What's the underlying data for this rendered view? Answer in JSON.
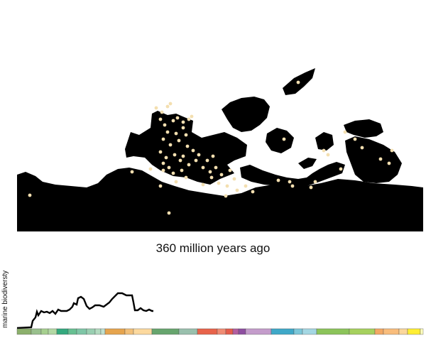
{
  "map": {
    "age_label": "360 million years ago",
    "land_color": "#000000",
    "fossil_color": "#f3dfb0",
    "fossil_sites": [
      [
        220,
        152
      ],
      [
        228,
        158
      ],
      [
        236,
        150
      ],
      [
        240,
        146
      ],
      [
        226,
        168
      ],
      [
        232,
        176
      ],
      [
        244,
        170
      ],
      [
        250,
        166
      ],
      [
        258,
        172
      ],
      [
        266,
        168
      ],
      [
        270,
        164
      ],
      [
        236,
        186
      ],
      [
        248,
        188
      ],
      [
        258,
        180
      ],
      [
        262,
        190
      ],
      [
        230,
        196
      ],
      [
        240,
        204
      ],
      [
        252,
        198
      ],
      [
        264,
        206
      ],
      [
        272,
        212
      ],
      [
        226,
        214
      ],
      [
        234,
        222
      ],
      [
        246,
        218
      ],
      [
        254,
        226
      ],
      [
        238,
        236
      ],
      [
        230,
        240
      ],
      [
        244,
        244
      ],
      [
        256,
        240
      ],
      [
        266,
        232
      ],
      [
        276,
        226
      ],
      [
        286,
        236
      ],
      [
        296,
        242
      ],
      [
        304,
        236
      ],
      [
        312,
        246
      ],
      [
        324,
        240
      ],
      [
        330,
        252
      ],
      [
        320,
        262
      ],
      [
        308,
        258
      ],
      [
        298,
        250
      ],
      [
        186,
        242
      ],
      [
        226,
        262
      ],
      [
        286,
        260
      ],
      [
        318,
        276
      ],
      [
        334,
        268
      ],
      [
        346,
        262
      ],
      [
        356,
        270
      ],
      [
        392,
        254
      ],
      [
        408,
        256
      ],
      [
        412,
        262
      ],
      [
        438,
        264
      ],
      [
        444,
        256
      ],
      [
        456,
        212
      ],
      [
        462,
        218
      ],
      [
        480,
        238
      ],
      [
        486,
        186
      ],
      [
        500,
        196
      ],
      [
        510,
        208
      ],
      [
        536,
        224
      ],
      [
        548,
        230
      ],
      [
        552,
        212
      ],
      [
        420,
        116
      ],
      [
        400,
        196
      ],
      [
        42,
        275
      ],
      [
        238,
        300
      ],
      [
        212,
        238
      ],
      [
        230,
        230
      ],
      [
        258,
        220
      ],
      [
        280,
        218
      ],
      [
        292,
        226
      ],
      [
        300,
        220
      ],
      [
        248,
        256
      ],
      [
        262,
        250
      ]
    ]
  },
  "biodiversity": {
    "ylabel": "marine biodiversty",
    "line_color": "#000000",
    "line": [
      [
        24,
        462
      ],
      [
        44,
        461
      ],
      [
        46,
        452
      ],
      [
        50,
        447
      ],
      [
        52,
        439
      ],
      [
        54,
        444
      ],
      [
        58,
        438
      ],
      [
        62,
        440
      ],
      [
        66,
        439
      ],
      [
        70,
        441
      ],
      [
        74,
        438
      ],
      [
        78,
        442
      ],
      [
        82,
        436
      ],
      [
        86,
        438
      ],
      [
        90,
        438
      ],
      [
        94,
        438
      ],
      [
        98,
        436
      ],
      [
        102,
        432
      ],
      [
        104,
        427
      ],
      [
        108,
        429
      ],
      [
        110,
        420
      ],
      [
        114,
        418
      ],
      [
        118,
        421
      ],
      [
        122,
        431
      ],
      [
        126,
        435
      ],
      [
        130,
        433
      ],
      [
        134,
        430
      ],
      [
        140,
        430
      ],
      [
        146,
        432
      ],
      [
        150,
        429
      ],
      [
        154,
        426
      ],
      [
        158,
        421
      ],
      [
        162,
        417
      ],
      [
        166,
        413
      ],
      [
        172,
        413
      ],
      [
        178,
        416
      ],
      [
        182,
        416
      ],
      [
        186,
        416
      ],
      [
        188,
        426
      ],
      [
        190,
        437
      ],
      [
        194,
        437
      ],
      [
        198,
        434
      ],
      [
        202,
        437
      ],
      [
        206,
        438
      ],
      [
        210,
        436
      ],
      [
        214,
        438
      ],
      [
        216,
        438
      ]
    ],
    "timescale": [
      {
        "w": 20,
        "color": "#8cb06c"
      },
      {
        "w": 14,
        "color": "#99c08d"
      },
      {
        "w": 10,
        "color": "#a6d08f"
      },
      {
        "w": 12,
        "color": "#b3d9a4"
      },
      {
        "w": 16,
        "color": "#33a97e"
      },
      {
        "w": 12,
        "color": "#67c092"
      },
      {
        "w": 14,
        "color": "#7fc6a6"
      },
      {
        "w": 12,
        "color": "#99cfb1"
      },
      {
        "w": 8,
        "color": "#b3dbc0"
      },
      {
        "w": 6,
        "color": "#bfe1d0"
      },
      {
        "w": 28,
        "color": "#e6a44e"
      },
      {
        "w": 12,
        "color": "#f2c07a"
      },
      {
        "w": 26,
        "color": "#fcd99e"
      },
      {
        "w": 38,
        "color": "#67a56e"
      },
      {
        "w": 26,
        "color": "#99c0ad"
      },
      {
        "w": 28,
        "color": "#e8634a"
      },
      {
        "w": 12,
        "color": "#f08c74"
      },
      {
        "w": 10,
        "color": "#e55c4a"
      },
      {
        "w": 8,
        "color": "#b35ea0"
      },
      {
        "w": 10,
        "color": "#8e4ea0"
      },
      {
        "w": 36,
        "color": "#c49ccb"
      },
      {
        "w": 32,
        "color": "#3fa8c8"
      },
      {
        "w": 12,
        "color": "#7cc7d9"
      },
      {
        "w": 20,
        "color": "#a4d7e3"
      },
      {
        "w": 46,
        "color": "#8cc45a"
      },
      {
        "w": 36,
        "color": "#a6d15e"
      },
      {
        "w": 12,
        "color": "#f3a864"
      },
      {
        "w": 22,
        "color": "#f9bd7c"
      },
      {
        "w": 12,
        "color": "#fbd79b"
      },
      {
        "w": 18,
        "color": "#ffee33"
      },
      {
        "w": 4,
        "color": "#ffffbf"
      }
    ]
  }
}
